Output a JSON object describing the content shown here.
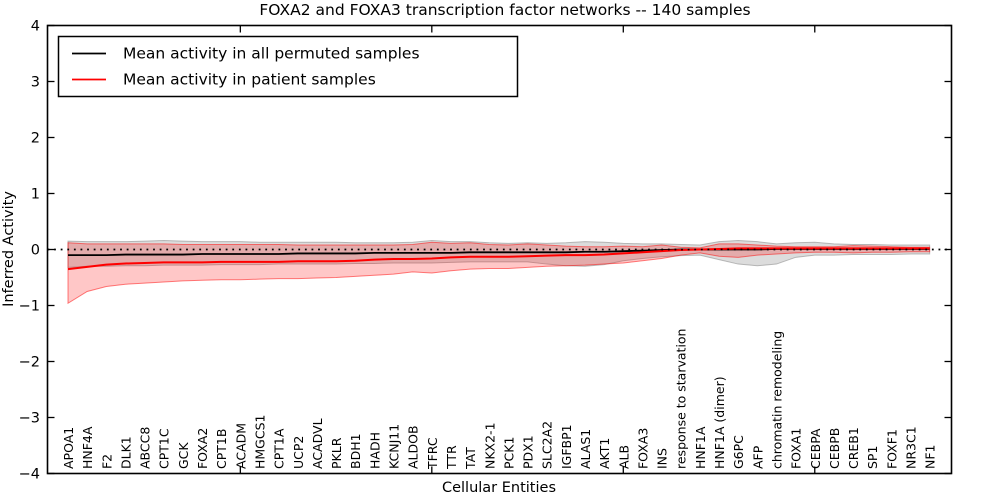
{
  "chart_data": {
    "type": "line",
    "title": "FOXA2 and FOXA3 transcription factor networks -- 140 samples",
    "xlabel": "Cellular Entities",
    "ylabel": "Inferred Activity",
    "ylim": [
      -4,
      4
    ],
    "yticks": [
      4,
      3,
      2,
      1,
      0,
      -1,
      -2,
      -3,
      -4
    ],
    "ytick_labels": [
      "4",
      "3",
      "2",
      "1",
      "0",
      "−1",
      "−2",
      "−3",
      "−4"
    ],
    "xtick_positions": [
      9,
      19,
      29,
      39
    ],
    "grid": false,
    "legend_position": "upper left",
    "reference_line": {
      "y": 0,
      "style": "dotted",
      "color": "#000000"
    },
    "categories": [
      "APOA1",
      "HNF4A",
      "F2",
      "DLK1",
      "ABCC8",
      "CPT1C",
      "GCK",
      "FOXA2",
      "CPT1B",
      "ACADM",
      "HMGCS1",
      "CPT1A",
      "UCP2",
      "ACADVL",
      "PKLR",
      "BDH1",
      "HADH",
      "KCNJ11",
      "ALDOB",
      "TFRC",
      "TTR",
      "TAT",
      "NKX2-1",
      "PCK1",
      "PDX1",
      "SLC2A2",
      "IGFBP1",
      "ALAS1",
      "AKT1",
      "ALB",
      "FOXA3",
      "INS",
      "response to starvation",
      "HNF1A",
      "HNF1A (dimer)",
      "G6PC",
      "AFP",
      "chromatin remodeling",
      "FOXA1",
      "CEBPA",
      "CEBPB",
      "CREB1",
      "SP1",
      "FOXF1",
      "NR3C1",
      "NF1"
    ],
    "series": [
      {
        "name": "Mean activity in all permuted samples",
        "color": "#000000",
        "values": [
          -0.1,
          -0.1,
          -0.1,
          -0.09,
          -0.09,
          -0.09,
          -0.09,
          -0.08,
          -0.08,
          -0.08,
          -0.08,
          -0.08,
          -0.07,
          -0.07,
          -0.07,
          -0.07,
          -0.06,
          -0.06,
          -0.06,
          -0.06,
          -0.06,
          -0.05,
          -0.05,
          -0.05,
          -0.05,
          -0.05,
          -0.05,
          -0.04,
          -0.04,
          -0.03,
          -0.02,
          -0.01,
          0.0,
          0.0,
          0.0,
          0.0,
          0.0,
          0.01,
          0.01,
          0.01,
          0.01,
          0.01,
          0.01,
          0.01,
          0.01,
          0.01
        ],
        "band": {
          "fill": "#8c8c8c",
          "opacity": 0.3,
          "upper": [
            0.15,
            0.14,
            0.14,
            0.14,
            0.15,
            0.16,
            0.15,
            0.14,
            0.14,
            0.14,
            0.13,
            0.13,
            0.13,
            0.13,
            0.13,
            0.12,
            0.12,
            0.12,
            0.13,
            0.16,
            0.14,
            0.14,
            0.12,
            0.11,
            0.12,
            0.11,
            0.12,
            0.14,
            0.13,
            0.11,
            0.1,
            0.1,
            0.09,
            0.08,
            0.14,
            0.16,
            0.14,
            0.1,
            0.12,
            0.13,
            0.1,
            0.09,
            0.09,
            0.08,
            0.08,
            0.08
          ],
          "lower": [
            -0.32,
            -0.3,
            -0.3,
            -0.29,
            -0.29,
            -0.28,
            -0.28,
            -0.28,
            -0.27,
            -0.27,
            -0.27,
            -0.26,
            -0.26,
            -0.26,
            -0.26,
            -0.25,
            -0.25,
            -0.24,
            -0.24,
            -0.24,
            -0.23,
            -0.22,
            -0.22,
            -0.22,
            -0.22,
            -0.26,
            -0.29,
            -0.3,
            -0.27,
            -0.2,
            -0.16,
            -0.13,
            -0.11,
            -0.1,
            -0.18,
            -0.26,
            -0.29,
            -0.26,
            -0.14,
            -0.1,
            -0.1,
            -0.09,
            -0.09,
            -0.09,
            -0.08,
            -0.08
          ]
        }
      },
      {
        "name": "Mean activity in patient samples",
        "color": "#ff0000",
        "values": [
          -0.35,
          -0.31,
          -0.27,
          -0.25,
          -0.24,
          -0.23,
          -0.23,
          -0.23,
          -0.22,
          -0.22,
          -0.22,
          -0.22,
          -0.21,
          -0.21,
          -0.21,
          -0.2,
          -0.18,
          -0.17,
          -0.17,
          -0.16,
          -0.14,
          -0.13,
          -0.13,
          -0.13,
          -0.12,
          -0.11,
          -0.1,
          -0.1,
          -0.09,
          -0.07,
          -0.05,
          -0.03,
          -0.01,
          0.0,
          0.01,
          0.02,
          0.02,
          0.02,
          0.02,
          0.02,
          0.02,
          0.02,
          0.02,
          0.02,
          0.02,
          0.02
        ],
        "band": {
          "fill": "#ff0000",
          "opacity": 0.22,
          "upper": [
            0.12,
            0.1,
            0.1,
            0.1,
            0.1,
            0.1,
            0.09,
            0.09,
            0.09,
            0.09,
            0.09,
            0.09,
            0.08,
            0.08,
            0.08,
            0.08,
            0.08,
            0.08,
            0.09,
            0.13,
            0.11,
            0.12,
            0.09,
            0.08,
            0.1,
            0.08,
            0.06,
            0.05,
            0.05,
            0.06,
            0.05,
            0.08,
            0.04,
            0.03,
            0.1,
            0.1,
            0.08,
            0.06,
            0.05,
            0.05,
            0.05,
            0.07,
            0.06,
            0.05,
            0.04,
            0.04
          ],
          "lower": [
            -0.96,
            -0.75,
            -0.66,
            -0.62,
            -0.6,
            -0.58,
            -0.56,
            -0.55,
            -0.54,
            -0.54,
            -0.53,
            -0.52,
            -0.52,
            -0.51,
            -0.5,
            -0.48,
            -0.46,
            -0.44,
            -0.4,
            -0.42,
            -0.38,
            -0.35,
            -0.34,
            -0.34,
            -0.32,
            -0.3,
            -0.29,
            -0.28,
            -0.26,
            -0.24,
            -0.2,
            -0.16,
            -0.1,
            -0.06,
            -0.12,
            -0.14,
            -0.1,
            -0.08,
            -0.06,
            -0.05,
            -0.05,
            -0.06,
            -0.05,
            -0.05,
            -0.04,
            -0.04
          ]
        }
      }
    ]
  }
}
